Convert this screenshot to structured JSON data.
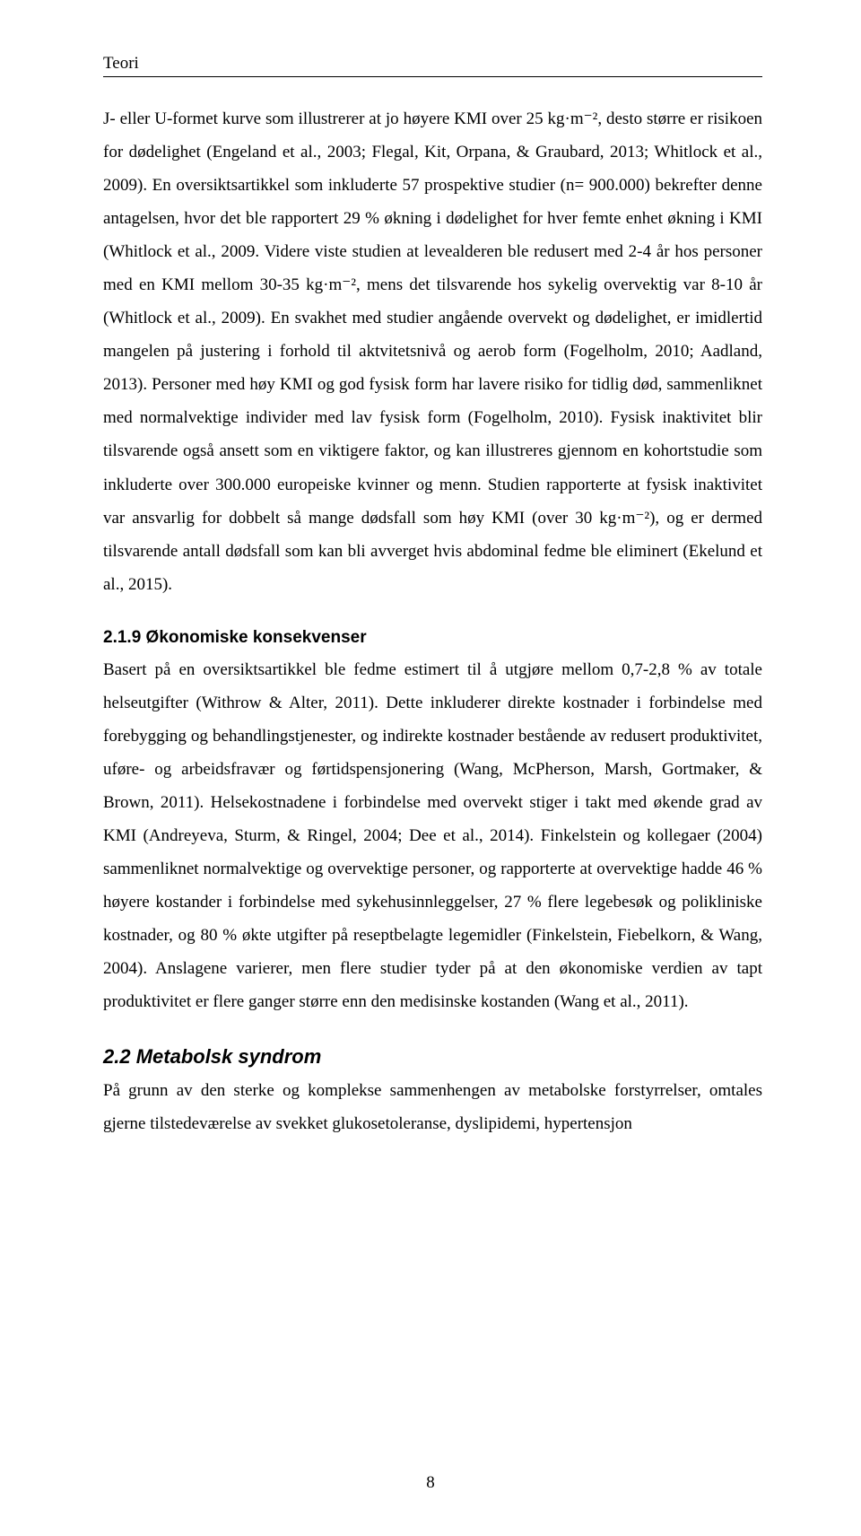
{
  "header": {
    "section": "Teori"
  },
  "paragraphs": {
    "p1": "J- eller U-formet kurve som illustrerer at jo høyere KMI over 25 kg·m⁻², desto større er risikoen for dødelighet (Engeland et al., 2003; Flegal, Kit, Orpana, & Graubard, 2013; Whitlock et al., 2009). En oversiktsartikkel som inkluderte 57 prospektive studier (n= 900.000) bekrefter denne antagelsen, hvor det ble rapportert 29 % økning i dødelighet for hver femte enhet økning i KMI (Whitlock et al., 2009. Videre viste studien at levealderen ble redusert med 2-4 år hos personer med en KMI mellom 30-35 kg·m⁻², mens det tilsvarende hos sykelig overvektig var 8-10 år (Whitlock et al., 2009). En svakhet med studier angående overvekt og dødelighet, er imidlertid mangelen på justering i forhold til aktvitetsnivå og aerob form (Fogelholm, 2010; Aadland, 2013). Personer med høy KMI og god fysisk form har lavere risiko for tidlig død, sammenliknet med normalvektige individer med lav fysisk form (Fogelholm, 2010). Fysisk inaktivitet blir tilsvarende også ansett som en viktigere faktor, og kan illustreres gjennom en kohortstudie som inkluderte over 300.000 europeiske kvinner og menn. Studien rapporterte at fysisk inaktivitet var ansvarlig for dobbelt så mange dødsfall som høy KMI (over 30 kg·m⁻²), og er dermed tilsvarende antall dødsfall som kan bli avverget hvis abdominal fedme ble eliminert (Ekelund et al., 2015).",
    "p2": "Basert på en oversiktsartikkel ble fedme estimert til å utgjøre mellom 0,7-2,8 % av totale helseutgifter (Withrow & Alter, 2011). Dette inkluderer direkte kostnader i forbindelse med forebygging og behandlingstjenester, og indirekte kostnader bestående av redusert produktivitet, uføre- og arbeidsfravær og førtidspensjonering (Wang, McPherson, Marsh, Gortmaker, & Brown, 2011). Helsekostnadene i forbindelse med overvekt stiger i takt med økende grad av KMI (Andreyeva, Sturm, & Ringel, 2004; Dee et al., 2014). Finkelstein og kollegaer (2004) sammenliknet normalvektige og overvektige personer, og rapporterte at overvektige hadde 46 % høyere kostander i forbindelse med sykehusinnleggelser, 27 % flere legebesøk og polikliniske kostnader, og 80 % økte utgifter på reseptbelagte legemidler (Finkelstein, Fiebelkorn, & Wang, 2004). Anslagene varierer, men flere studier tyder på at den økonomiske verdien av tapt produktivitet er flere ganger større enn den medisinske kostanden (Wang et al., 2011).",
    "p3": "På grunn av den sterke og komplekse sammenhengen av metabolske forstyrrelser, omtales gjerne tilstedeværelse av svekket glukosetoleranse, dyslipidemi, hypertensjon"
  },
  "headings": {
    "h219": "2.1.9  Økonomiske konsekvenser",
    "h22": "2.2   Metabolsk syndrom"
  },
  "page": {
    "number": "8"
  }
}
